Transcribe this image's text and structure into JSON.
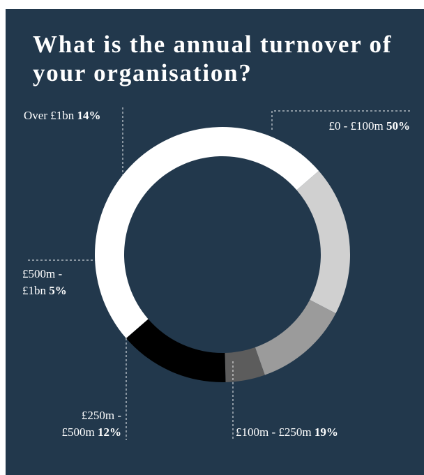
{
  "chart_data": {
    "type": "pie",
    "title": "What is the annual turnover of your organisation?",
    "donut": true,
    "slices": [
      {
        "name": "£0 - £100m",
        "value": 50,
        "label": "50%",
        "color": "#ffffff"
      },
      {
        "name": "£100m - £250m",
        "value": 19,
        "label": "19%",
        "color": "#d0d0d0"
      },
      {
        "name": "£250m - £500m",
        "value": 12,
        "label": "12%",
        "color": "#9b9b9b"
      },
      {
        "name": "£500m - £1bn",
        "value": 5,
        "label": "5%",
        "color": "#5c5c5c"
      },
      {
        "name": "Over £1bn",
        "value": 14,
        "label": "14%",
        "color": "#000000"
      }
    ],
    "labels": {
      "s0_line1": "£0 - £100m ",
      "s1_line1": "£100m - £250m ",
      "s2_line1": "£250m -",
      "s2_line2": "£500m ",
      "s3_line1": "£500m -",
      "s3_line2": "£1bn ",
      "s4_line1": "Over £1bn "
    },
    "background": "#22384c",
    "start": "top-left, clockwise"
  }
}
